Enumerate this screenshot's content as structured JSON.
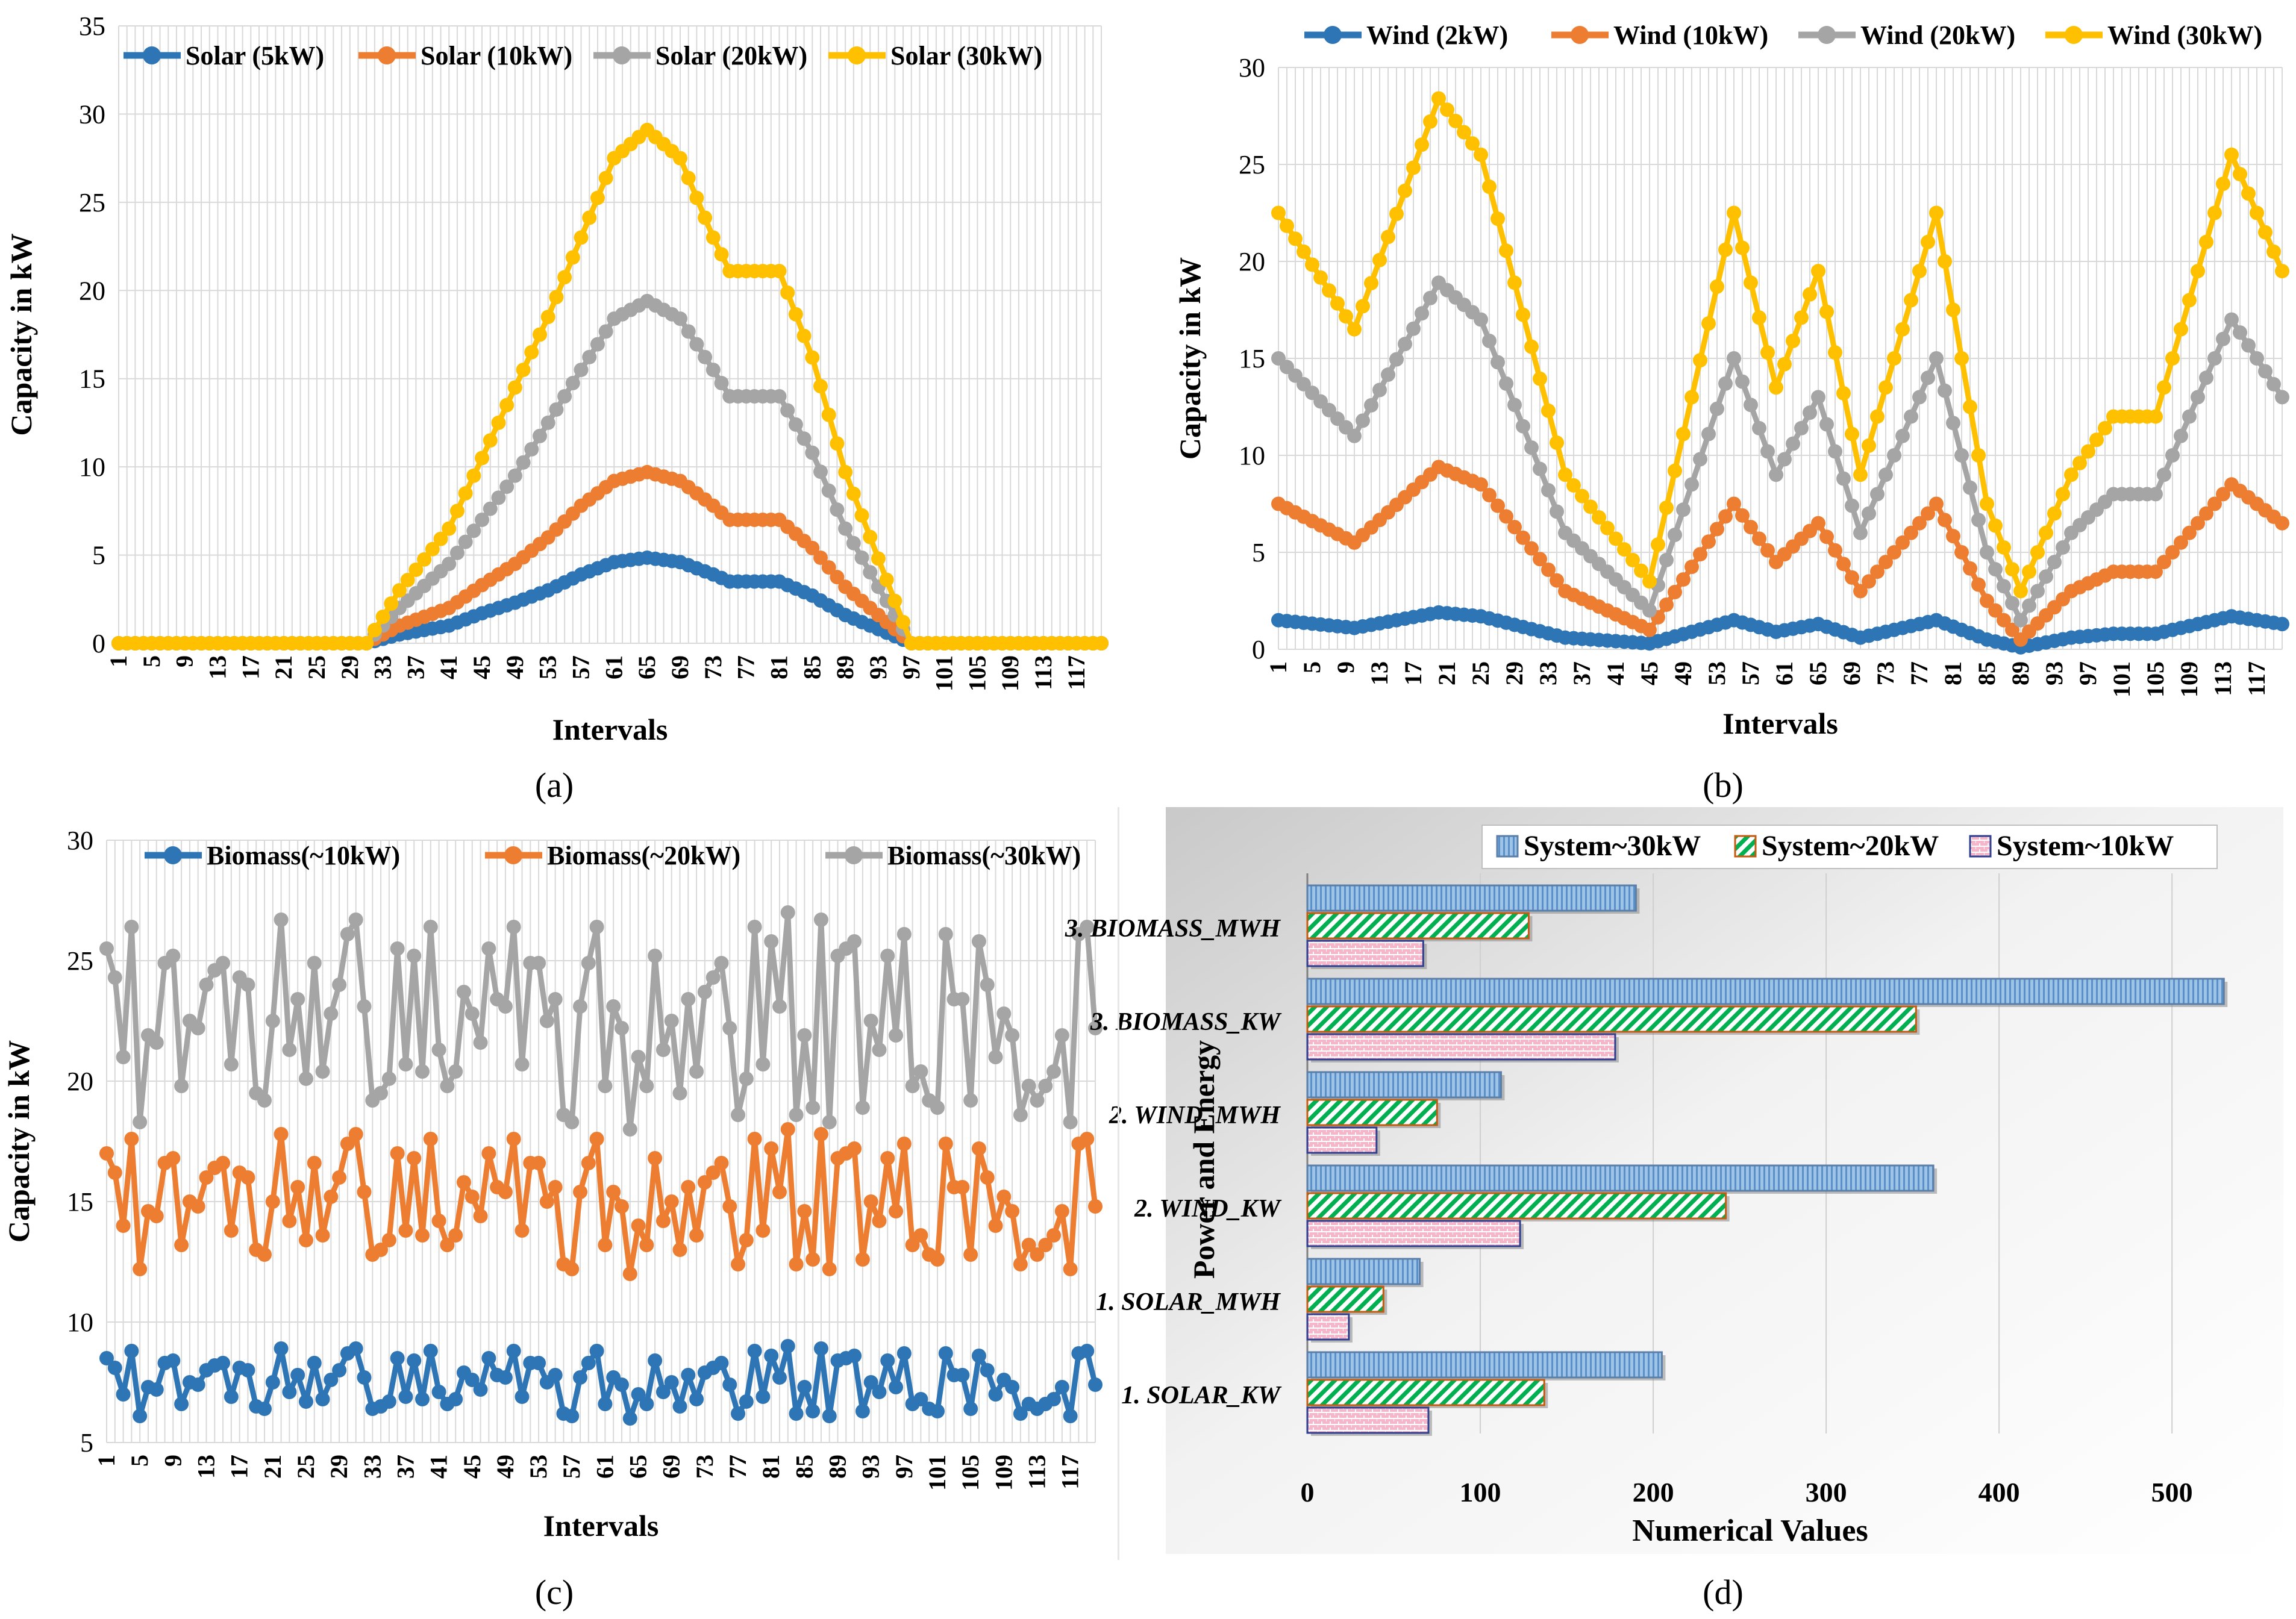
{
  "colors": {
    "blue": "#2E75B6",
    "orange": "#ED7D31",
    "gray": "#A5A5A5",
    "yellow": "#FFC000",
    "grid": "#D9D9D9",
    "bar30": "#9DC3E6",
    "bar20": "#00B050",
    "bar10": "#F4B6C8"
  },
  "chart_data": [
    {
      "id": "a",
      "caption": "(a)",
      "type": "line",
      "ylabel": "Capacity in kW",
      "xlabel": "Intervals",
      "ylim": [
        0,
        35
      ],
      "yticks": [
        0,
        5,
        10,
        15,
        20,
        25,
        30,
        35
      ],
      "xticks": [
        "1",
        "5",
        "9",
        "13",
        "17",
        "21",
        "25",
        "29",
        "33",
        "37",
        "41",
        "45",
        "49",
        "53",
        "57",
        "61",
        "65",
        "69",
        "73",
        "77",
        "81",
        "85",
        "89",
        "93",
        "97",
        "101",
        "105",
        "109",
        "113",
        "117"
      ],
      "xcount": 120,
      "series": [
        {
          "name": "Solar (5kW)",
          "color_key": "blue",
          "scale": 5,
          "points": [
            [
              1,
              0
            ],
            [
              31,
              0
            ],
            [
              35,
              0.5
            ],
            [
              41,
              1.0
            ],
            [
              45,
              1.7
            ],
            [
              49,
              2.3
            ],
            [
              53,
              3.0
            ],
            [
              57,
              3.9
            ],
            [
              61,
              4.6
            ],
            [
              65,
              4.85
            ],
            [
              69,
              4.6
            ],
            [
              73,
              3.9
            ],
            [
              75,
              3.5
            ],
            [
              81,
              3.5
            ],
            [
              85,
              2.7
            ],
            [
              89,
              1.6
            ],
            [
              93,
              0.8
            ],
            [
              97,
              0
            ],
            [
              120,
              0
            ]
          ]
        },
        {
          "name": "Solar (10kW)",
          "color_key": "orange",
          "scale": 10,
          "points": [
            [
              1,
              0
            ],
            [
              31,
              0
            ],
            [
              35,
              1.0
            ],
            [
              41,
              2.0
            ],
            [
              45,
              3.3
            ],
            [
              49,
              4.5
            ],
            [
              53,
              6.0
            ],
            [
              57,
              7.8
            ],
            [
              61,
              9.2
            ],
            [
              65,
              9.7
            ],
            [
              69,
              9.2
            ],
            [
              73,
              7.8
            ],
            [
              75,
              7.0
            ],
            [
              81,
              7.0
            ],
            [
              85,
              5.4
            ],
            [
              89,
              3.2
            ],
            [
              93,
              1.6
            ],
            [
              97,
              0
            ],
            [
              120,
              0
            ]
          ]
        },
        {
          "name": "Solar (20kW)",
          "color_key": "gray",
          "scale": 20,
          "points": [
            [
              1,
              0
            ],
            [
              31,
              0
            ],
            [
              35,
              2.0
            ],
            [
              41,
              4.5
            ],
            [
              45,
              7.0
            ],
            [
              49,
              9.5
            ],
            [
              53,
              12.5
            ],
            [
              57,
              15.5
            ],
            [
              61,
              18.4
            ],
            [
              65,
              19.4
            ],
            [
              69,
              18.4
            ],
            [
              73,
              15.5
            ],
            [
              75,
              14.0
            ],
            [
              81,
              14.0
            ],
            [
              85,
              10.8
            ],
            [
              89,
              6.5
            ],
            [
              93,
              3.2
            ],
            [
              97,
              0
            ],
            [
              120,
              0
            ]
          ]
        },
        {
          "name": "Solar (30kW)",
          "color_key": "yellow",
          "scale": 30,
          "points": [
            [
              1,
              0
            ],
            [
              31,
              0
            ],
            [
              35,
              3.0
            ],
            [
              41,
              6.5
            ],
            [
              45,
              10.5
            ],
            [
              49,
              14.5
            ],
            [
              53,
              18.5
            ],
            [
              57,
              23.0
            ],
            [
              61,
              27.5
            ],
            [
              65,
              29.1
            ],
            [
              69,
              27.5
            ],
            [
              73,
              23.0
            ],
            [
              75,
              21.1
            ],
            [
              81,
              21.1
            ],
            [
              85,
              16.2
            ],
            [
              89,
              9.7
            ],
            [
              93,
              4.8
            ],
            [
              97,
              0
            ],
            [
              120,
              0
            ]
          ]
        }
      ]
    },
    {
      "id": "b",
      "caption": "(b)",
      "type": "line",
      "ylabel": "Capacity in kW",
      "xlabel": "Intervals",
      "ylim": [
        0,
        30
      ],
      "yticks": [
        0,
        5,
        10,
        15,
        20,
        25,
        30
      ],
      "xticks": [
        "1",
        "5",
        "9",
        "13",
        "17",
        "21",
        "25",
        "29",
        "33",
        "37",
        "41",
        "45",
        "49",
        "53",
        "57",
        "61",
        "65",
        "69",
        "73",
        "77",
        "81",
        "85",
        "89",
        "93",
        "97",
        "101",
        "105",
        "109",
        "113",
        "117"
      ],
      "xcount": 120,
      "series": [
        {
          "name": "Wind (2kW)",
          "color_key": "blue",
          "scale": 2,
          "points": [
            [
              1,
              1.5
            ],
            [
              10,
              1.1
            ],
            [
              20,
              1.9
            ],
            [
              25,
              1.7
            ],
            [
              35,
              0.6
            ],
            [
              45,
              0.3
            ],
            [
              55,
              1.5
            ],
            [
              60,
              0.9
            ],
            [
              65,
              1.3
            ],
            [
              70,
              0.6
            ],
            [
              79,
              1.5
            ],
            [
              85,
              0.5
            ],
            [
              89,
              0.1
            ],
            [
              95,
              0.6
            ],
            [
              100,
              0.8
            ],
            [
              105,
              0.8
            ],
            [
              114,
              1.7
            ],
            [
              120,
              1.3
            ]
          ]
        },
        {
          "name": "Wind (10kW)",
          "color_key": "orange",
          "scale": 10,
          "points": [
            [
              1,
              7.5
            ],
            [
              10,
              5.5
            ],
            [
              20,
              9.4
            ],
            [
              25,
              8.5
            ],
            [
              35,
              3.0
            ],
            [
              45,
              1.0
            ],
            [
              55,
              7.5
            ],
            [
              60,
              4.5
            ],
            [
              65,
              6.5
            ],
            [
              70,
              3.0
            ],
            [
              79,
              7.5
            ],
            [
              85,
              2.5
            ],
            [
              89,
              0.5
            ],
            [
              95,
              3.0
            ],
            [
              100,
              4.0
            ],
            [
              105,
              4.0
            ],
            [
              114,
              8.5
            ],
            [
              120,
              6.5
            ]
          ]
        },
        {
          "name": "Wind (20kW)",
          "color_key": "gray",
          "scale": 20,
          "points": [
            [
              1,
              15.0
            ],
            [
              10,
              11.0
            ],
            [
              20,
              18.9
            ],
            [
              25,
              17.0
            ],
            [
              35,
              6.0
            ],
            [
              45,
              2.0
            ],
            [
              55,
              15.0
            ],
            [
              60,
              9.0
            ],
            [
              65,
              13.0
            ],
            [
              70,
              6.0
            ],
            [
              79,
              15.0
            ],
            [
              85,
              5.0
            ],
            [
              89,
              1.5
            ],
            [
              95,
              6.0
            ],
            [
              100,
              8.0
            ],
            [
              105,
              8.0
            ],
            [
              114,
              17.0
            ],
            [
              120,
              13.0
            ]
          ]
        },
        {
          "name": "Wind (30kW)",
          "color_key": "yellow",
          "scale": 30,
          "points": [
            [
              1,
              22.5
            ],
            [
              10,
              16.5
            ],
            [
              20,
              28.4
            ],
            [
              25,
              25.5
            ],
            [
              35,
              9.0
            ],
            [
              45,
              3.5
            ],
            [
              55,
              22.5
            ],
            [
              60,
              13.5
            ],
            [
              65,
              19.5
            ],
            [
              70,
              9.0
            ],
            [
              79,
              22.5
            ],
            [
              85,
              7.5
            ],
            [
              89,
              3.0
            ],
            [
              95,
              9.0
            ],
            [
              100,
              12.0
            ],
            [
              105,
              12.0
            ],
            [
              114,
              25.5
            ],
            [
              120,
              19.5
            ]
          ]
        }
      ]
    },
    {
      "id": "c",
      "caption": "(c)",
      "type": "line",
      "ylabel": "Capacity in kW",
      "xlabel": "Intervals",
      "ylim": [
        5,
        30
      ],
      "yticks": [
        5,
        10,
        15,
        20,
        25,
        30
      ],
      "xticks": [
        "1",
        "5",
        "9",
        "13",
        "17",
        "21",
        "25",
        "29",
        "33",
        "37",
        "41",
        "45",
        "49",
        "53",
        "57",
        "61",
        "65",
        "69",
        "73",
        "77",
        "81",
        "85",
        "89",
        "93",
        "97",
        "101",
        "105",
        "109",
        "113",
        "117"
      ],
      "xcount": 120,
      "base_pattern": [
        8.5,
        8.1,
        7.0,
        8.8,
        6.1,
        7.3,
        7.2,
        8.3,
        8.4,
        6.6,
        7.5,
        7.4,
        8.0,
        8.2,
        8.3,
        6.9,
        8.1,
        8.0,
        6.5,
        6.4,
        7.5,
        8.9,
        7.1,
        7.8,
        6.7,
        8.3,
        6.8,
        7.6,
        8.0,
        8.7,
        8.9,
        7.7,
        6.4,
        6.5,
        6.7,
        8.5,
        6.9,
        8.4,
        6.8,
        8.8,
        7.1,
        6.6,
        6.8,
        7.9,
        7.6,
        7.2,
        8.5,
        7.8,
        7.7,
        8.8,
        6.9,
        8.3,
        8.3,
        7.5,
        7.8,
        6.2,
        6.1,
        7.7,
        8.3,
        8.8,
        6.6,
        7.7,
        7.4,
        6.0,
        7.0,
        6.6,
        8.4,
        7.1,
        7.5,
        6.5,
        7.8,
        6.8,
        7.9,
        8.1,
        8.3,
        7.4,
        6.2,
        6.7,
        8.8,
        6.9,
        8.6,
        7.7,
        9.0,
        6.2,
        7.3,
        6.3,
        8.9,
        6.1,
        8.4,
        8.5,
        8.6,
        6.3,
        7.5,
        7.1,
        8.4,
        7.3,
        8.7,
        6.6,
        6.8,
        6.4,
        6.3,
        8.7,
        7.8,
        7.8,
        6.4,
        8.6,
        8.0,
        7.0,
        7.6,
        7.3,
        6.2,
        6.6,
        6.4,
        6.6,
        6.8,
        7.3,
        6.1,
        8.7,
        8.8,
        7.4
      ],
      "series": [
        {
          "name": "Biomass(~10kW)",
          "color_key": "blue",
          "factor": 1
        },
        {
          "name": "Biomass(~20kW)",
          "color_key": "orange",
          "factor": 2
        },
        {
          "name": "Biomass(~30kW)",
          "color_key": "gray",
          "factor": 3
        }
      ]
    },
    {
      "id": "d",
      "caption": "(d)",
      "type": "bar",
      "orientation": "horizontal",
      "ylabel": "Power and Energy",
      "xlabel": "Numerical Values",
      "xlim": [
        0,
        540
      ],
      "xticks": [
        0,
        100,
        200,
        300,
        400,
        500
      ],
      "categories": [
        "3. BIOMASS_MWH",
        "3. BIOMASS_KW",
        "2. WIND_MWH",
        "2. WIND_KW",
        "1. SOLAR_MWH",
        "1. SOLAR_KW"
      ],
      "series": [
        {
          "name": "System~30kW",
          "color_key": "bar30",
          "values": [
            190,
            530,
            112,
            362,
            65,
            205
          ]
        },
        {
          "name": "System~20kW",
          "color_key": "bar20",
          "values": [
            128,
            352,
            75,
            242,
            44,
            137
          ]
        },
        {
          "name": "System~10kW",
          "color_key": "bar10",
          "values": [
            67,
            178,
            40,
            123,
            24,
            70
          ]
        }
      ]
    }
  ]
}
